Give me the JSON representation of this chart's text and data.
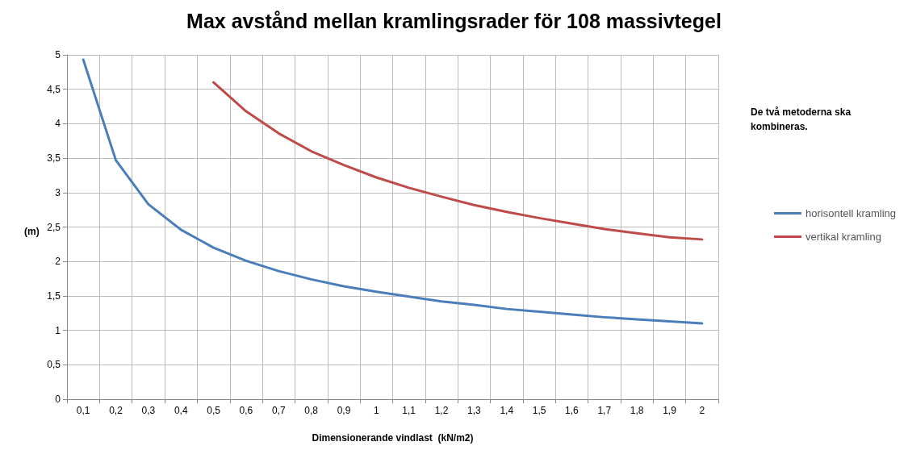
{
  "chart_data": {
    "type": "line",
    "title": "Max avstånd mellan kramlingsrader för 108 massivtegel",
    "xlabel": "Dimensionerande vindlast  (kN/m2)",
    "ylabel": "(m)",
    "categories": [
      "0,1",
      "0,2",
      "0,3",
      "0,4",
      "0,5",
      "0,6",
      "0,7",
      "0,8",
      "0,9",
      "1",
      "1,1",
      "1,2",
      "1,3",
      "1,4",
      "1,5",
      "1,6",
      "1,7",
      "1,8",
      "1,9",
      "2"
    ],
    "series": [
      {
        "name": "horisontell kramling",
        "color": "#4a7ebb",
        "values": [
          4.93,
          3.47,
          2.83,
          2.46,
          2.2,
          2.01,
          1.86,
          1.74,
          1.64,
          1.56,
          1.49,
          1.42,
          1.37,
          1.31,
          1.27,
          1.23,
          1.19,
          1.16,
          1.13,
          1.1
        ]
      },
      {
        "name": "vertikal kramling",
        "color": "#be4b48",
        "values": [
          null,
          null,
          null,
          null,
          4.6,
          4.18,
          3.86,
          3.6,
          3.4,
          3.22,
          3.07,
          2.94,
          2.82,
          2.72,
          2.63,
          2.55,
          2.47,
          2.41,
          2.35,
          2.32
        ]
      }
    ],
    "ylim": [
      0,
      5
    ],
    "yticks": [
      0,
      {
        "value": 0.5,
        "label": "0,5"
      },
      1,
      {
        "value": 1.5,
        "label": "1,5"
      },
      2,
      {
        "value": 2.5,
        "label": "2,5"
      },
      3,
      {
        "value": 3.5,
        "label": "3,5"
      },
      4,
      {
        "value": 4.5,
        "label": "4,5"
      },
      5
    ],
    "grid": true,
    "legend": "right",
    "marker": "none",
    "line_style": "solid",
    "annotations": [
      "De två metoderna ska kombineras."
    ]
  }
}
